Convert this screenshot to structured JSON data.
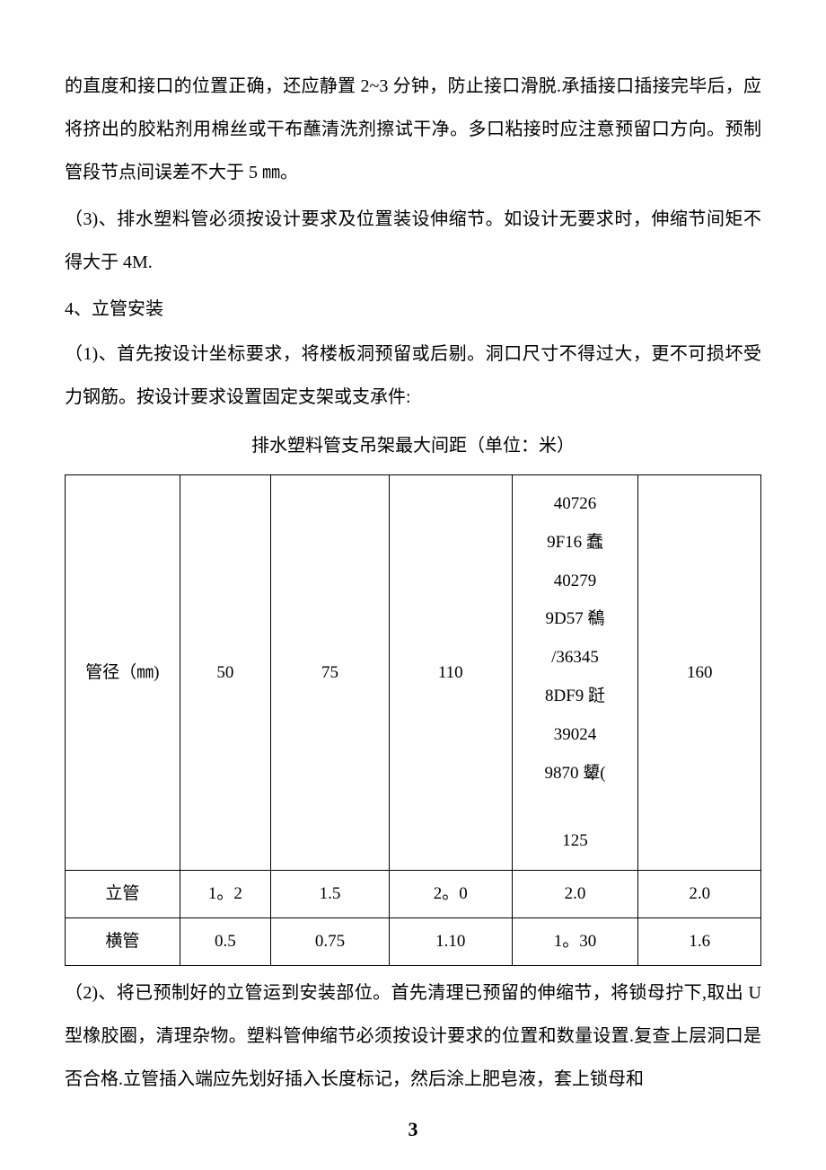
{
  "paragraphs": {
    "p1": "的直度和接口的位置正确，还应静置 2~3 分钟，防止接口滑脱.承插接口插接完毕后，应将挤出的胶粘剂用棉丝或干布蘸清洗剂擦试干净。多口粘接时应注意预留口方向。预制管段节点间误差不大于 5 ㎜。",
    "p2": "（3)、排水塑料管必须按设计要求及位置装设伸缩节。如设计无要求时，伸缩节间矩不得大于 4M.",
    "p3": "4、立管安装",
    "p4": "（1)、首先按设计坐标要求，将楼板洞预留或后剔。洞口尺寸不得过大，更不可损坏受力钢筋。按设计要求设置固定支架或支承件:",
    "p5": "（2)、将已预制好的立管运到安装部位。首先清理已预留的伸缩节，将锁母拧下,取出 U 型橡胶圈，清理杂物。塑料管伸缩节必须按设计要求的位置和数量设置.复查上层洞口是否合格.立管插入端应先划好插入长度标记，然后涂上肥皂液，套上锁母和"
  },
  "table": {
    "caption": "排水塑料管支吊架最大间距（单位：米）",
    "headerRow": {
      "c1": "管径（㎜)",
      "c2": "50",
      "c3": "75",
      "c4": "110",
      "c5_lines": [
        "40726",
        "9F16 蠢",
        "40279",
        "9D57 鵗",
        "/36345",
        "8DF9 跹",
        "39024",
        "9870 顰(",
        "125"
      ],
      "c6": "160"
    },
    "row2": {
      "c1": "立管",
      "c2": "1。2",
      "c3": "1.5",
      "c4": "2。0",
      "c5": "2.0",
      "c6": "2.0"
    },
    "row3": {
      "c1": "横管",
      "c2": "0.5",
      "c3": "0.75",
      "c4": "1.10",
      "c5": "1。30",
      "c6": "1.6"
    }
  },
  "pageNumber": "3",
  "style": {
    "background_color": "#ffffff",
    "text_color": "#000000",
    "border_color": "#000000",
    "body_font_size": 20,
    "table_font_size": 19,
    "line_height": 2.4
  }
}
